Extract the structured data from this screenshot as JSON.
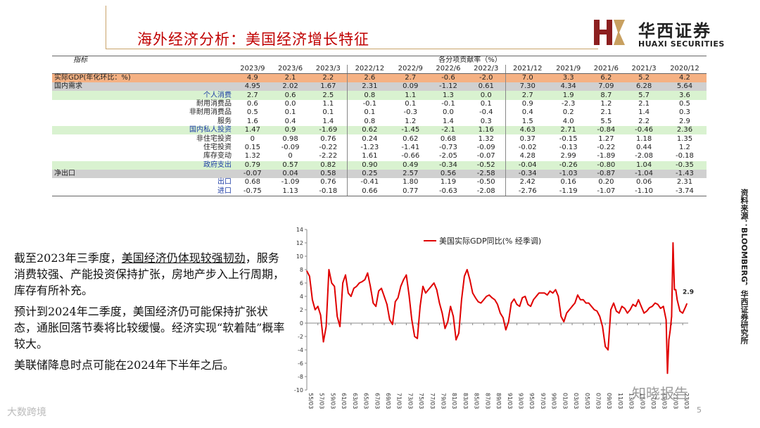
{
  "header": {
    "title": "海外经济分析：美国经济增长特征",
    "logo_cn": "华西证券",
    "logo_en": "HUAXI SECURITIES"
  },
  "table": {
    "label_header": "指标",
    "group_header": "各分项贡献率（%）",
    "columns": [
      "2023/9",
      "2023/6",
      "2023/3",
      "2022/12",
      "2022/9",
      "2022/6",
      "2022/3",
      "2021/12",
      "2021/9",
      "2021/6",
      "2021/3",
      "2020/12"
    ],
    "rows": [
      {
        "label": "实际GDP(年化环比：%)",
        "style": "orange",
        "values": [
          "4.9",
          "2.1",
          "2.2",
          "2.6",
          "2.7",
          "-0.6",
          "-2.0",
          "7.0",
          "3.3",
          "6.2",
          "5.2",
          "4.2"
        ]
      },
      {
        "label": "国内需求",
        "style": "gray",
        "values": [
          "4.95",
          "2.02",
          "1.67",
          "2.31",
          "0.09",
          "-1.12",
          "0.61",
          "7.30",
          "4.34",
          "7.09",
          "6.28",
          "5.64"
        ]
      },
      {
        "label": "个人消费",
        "style": "green",
        "values": [
          "2.7",
          "0.6",
          "2.5",
          "0.8",
          "1.1",
          "1.3",
          "0.0",
          "2.7",
          "1.9",
          "8.7",
          "5.7",
          "3.6"
        ]
      },
      {
        "label": "耐用消费品",
        "style": "plain",
        "values": [
          "0.6",
          "0.0",
          "1.1",
          "-0.1",
          "0.1",
          "-0.1",
          "0.1",
          "0.9",
          "-2.3",
          "1.2",
          "2.1",
          "0.5"
        ]
      },
      {
        "label": "非耐用消费品",
        "style": "plain",
        "values": [
          "0.5",
          "0.1",
          "0.1",
          "0.1",
          "-0.3",
          "0.0",
          "-0.4",
          "0.4",
          "0.2",
          "2.1",
          "1.4",
          "0.3"
        ]
      },
      {
        "label": "服务",
        "style": "plain",
        "values": [
          "1.6",
          "0.4",
          "1.4",
          "0.8",
          "1.2",
          "1.4",
          "0.3",
          "1.5",
          "4.0",
          "5.5",
          "2.2",
          "2.9"
        ]
      },
      {
        "label": "国内私人投资",
        "style": "green",
        "values": [
          "1.47",
          "0.9",
          "-1.69",
          "0.62",
          "-1.45",
          "-2.1",
          "1.16",
          "4.63",
          "2.71",
          "-0.84",
          "-0.46",
          "2.36"
        ]
      },
      {
        "label": "非住宅投资",
        "style": "plain",
        "values": [
          "0",
          "0.98",
          "0.76",
          "0.24",
          "0.62",
          "0.68",
          "1.32",
          "0.37",
          "-0.15",
          "1.27",
          "1.18",
          "1.35"
        ]
      },
      {
        "label": "住宅投资",
        "style": "plain",
        "values": [
          "0.15",
          "-0.09",
          "-0.22",
          "-1.23",
          "-1.41",
          "-0.73",
          "-0.09",
          "-0.02",
          "-0.13",
          "-0.22",
          "0.44",
          "1.2"
        ]
      },
      {
        "label": "库存变动",
        "style": "plain",
        "values": [
          "1.32",
          "0",
          "-2.22",
          "1.61",
          "-0.66",
          "-2.05",
          "-0.07",
          "4.28",
          "2.99",
          "-1.89",
          "-2.08",
          "-0.18"
        ]
      },
      {
        "label": "政府支出",
        "style": "green",
        "values": [
          "0.79",
          "0.57",
          "0.82",
          "0.90",
          "0.49",
          "-0.34",
          "-0.52",
          "-0.04",
          "-0.26",
          "-0.80",
          "1.04",
          "-0.35"
        ]
      },
      {
        "label": "净出口",
        "style": "gray-left",
        "values": [
          "-0.07",
          "0.04",
          "0.58",
          "0.25",
          "2.57",
          "0.56",
          "-2.58",
          "-0.34",
          "-1.03",
          "-0.87",
          "-1.04",
          "-1.43"
        ]
      },
      {
        "label": "出口",
        "style": "blue",
        "values": [
          "0.68",
          "-1.09",
          "0.76",
          "-0.41",
          "1.80",
          "1.19",
          "-0.50",
          "2.42",
          "0.16",
          "0.20",
          "0.06",
          "2.31"
        ]
      },
      {
        "label": "进口",
        "style": "blue",
        "values": [
          "-0.75",
          "1.13",
          "-0.18",
          "0.66",
          "0.77",
          "-0.63",
          "-2.08",
          "-2.76",
          "-1.19",
          "-1.07",
          "-1.10",
          "-3.74"
        ]
      }
    ]
  },
  "body": {
    "p1_a": "截至2023年三季度，",
    "p1_b": "美国经济仍体现较强韧劲",
    "p1_c": "，服务消费较强、产能投资保持扩张，房地产步入上行周期，库存有所补充。",
    "p2": "预计到2024年二季度，美国经济仍可能保持扩张状态，通胀回落节奏将比较缓慢。经济实现“软着陆”概率较大。",
    "p3": "美联储降息时点可能在2024年下半年之后。"
  },
  "side_note": "资料来源：BLOOMBERG，华西证券研究所",
  "page_number": "5",
  "watermarks": {
    "bottom_left": "大数跨境",
    "bottom_right": "知晓报告"
  },
  "chart_data": {
    "type": "line",
    "title": "",
    "xlabel": "",
    "ylabel": "",
    "ylim": [
      -10,
      14
    ],
    "yticks": [
      -10,
      -8,
      -6,
      -4,
      -2,
      0,
      2,
      4,
      6,
      8,
      10,
      12,
      14
    ],
    "x_tick_labels": [
      "55/03",
      "57/03",
      "59/03",
      "61/03",
      "63/03",
      "65/03",
      "67/03",
      "69/03",
      "71/03",
      "73/03",
      "75/03",
      "77/03",
      "79/03",
      "81/03",
      "83/03",
      "85/03",
      "87/03",
      "89/03",
      "91/03",
      "93/03",
      "95/03",
      "97/03",
      "99/03",
      "01/03",
      "03/03",
      "05/03",
      "07/03",
      "09/03",
      "11/03",
      "13/03",
      "15/03",
      "17/03",
      "19/03",
      "21/03",
      "23/03"
    ],
    "grid": false,
    "legend_position": "top-left",
    "last_value_label": "2.9",
    "color": "#e00000",
    "series": [
      {
        "name": "美国实际GDP同比(% 经季调)",
        "x": [
          1955.0,
          1955.5,
          1956.0,
          1956.5,
          1957.0,
          1957.5,
          1958.0,
          1958.5,
          1959.0,
          1959.5,
          1960.0,
          1960.5,
          1961.0,
          1961.5,
          1962.0,
          1962.5,
          1963.0,
          1963.5,
          1964.0,
          1964.5,
          1965.0,
          1965.5,
          1966.0,
          1966.5,
          1967.0,
          1967.5,
          1968.0,
          1968.5,
          1969.0,
          1969.5,
          1970.0,
          1970.5,
          1971.0,
          1971.5,
          1972.0,
          1972.5,
          1973.0,
          1973.5,
          1974.0,
          1974.5,
          1975.0,
          1975.5,
          1976.0,
          1976.5,
          1977.0,
          1977.5,
          1978.0,
          1978.5,
          1979.0,
          1979.5,
          1980.0,
          1980.5,
          1981.0,
          1981.5,
          1982.0,
          1982.5,
          1983.0,
          1983.5,
          1984.0,
          1984.5,
          1985.0,
          1985.5,
          1986.0,
          1986.5,
          1987.0,
          1987.5,
          1988.0,
          1988.5,
          1989.0,
          1989.5,
          1990.0,
          1990.5,
          1991.0,
          1991.5,
          1992.0,
          1992.5,
          1993.0,
          1993.5,
          1994.0,
          1994.5,
          1995.0,
          1995.5,
          1996.0,
          1996.5,
          1997.0,
          1997.5,
          1998.0,
          1998.5,
          1999.0,
          1999.5,
          2000.0,
          2000.5,
          2001.0,
          2001.5,
          2002.0,
          2002.5,
          2003.0,
          2003.5,
          2004.0,
          2004.5,
          2005.0,
          2005.5,
          2006.0,
          2006.5,
          2007.0,
          2007.5,
          2008.0,
          2008.5,
          2009.0,
          2009.5,
          2010.0,
          2010.5,
          2011.0,
          2011.5,
          2012.0,
          2012.5,
          2013.0,
          2013.5,
          2014.0,
          2014.5,
          2015.0,
          2015.5,
          2016.0,
          2016.5,
          2017.0,
          2017.5,
          2018.0,
          2018.5,
          2019.0,
          2019.5,
          2020.0,
          2020.25,
          2020.5,
          2020.75,
          2021.0,
          2021.25,
          2021.5,
          2021.75,
          2022.0,
          2022.5,
          2023.0,
          2023.5,
          2023.75
        ],
        "values": [
          7.8,
          7.0,
          3.5,
          2.0,
          2.5,
          1.2,
          -2.8,
          -0.5,
          8.0,
          6.0,
          5.5,
          1.0,
          -0.5,
          6.0,
          7.2,
          4.5,
          4.0,
          5.2,
          5.5,
          6.0,
          6.2,
          6.5,
          7.5,
          5.5,
          3.0,
          2.5,
          4.8,
          5.2,
          4.0,
          2.8,
          0.5,
          -0.2,
          3.2,
          3.8,
          5.5,
          6.5,
          7.2,
          4.2,
          0.5,
          -2.0,
          -2.3,
          2.5,
          5.5,
          4.5,
          5.0,
          5.5,
          6.0,
          5.0,
          3.0,
          1.5,
          -0.8,
          0.2,
          2.5,
          1.0,
          -2.5,
          -1.5,
          3.5,
          7.0,
          8.0,
          6.5,
          4.5,
          3.8,
          3.2,
          3.0,
          3.5,
          4.0,
          4.2,
          3.8,
          3.5,
          2.8,
          1.5,
          0.8,
          -1.0,
          0.2,
          3.0,
          3.6,
          2.8,
          2.5,
          3.8,
          4.0,
          2.8,
          2.5,
          3.5,
          4.0,
          4.5,
          4.5,
          4.5,
          4.2,
          4.8,
          4.5,
          5.0,
          4.0,
          1.0,
          0.2,
          1.5,
          2.0,
          2.5,
          3.0,
          4.2,
          3.5,
          3.5,
          3.0,
          3.0,
          2.5,
          2.0,
          1.8,
          1.0,
          -0.5,
          -3.5,
          -4.0,
          2.0,
          3.0,
          1.8,
          1.5,
          2.5,
          2.2,
          1.5,
          2.0,
          2.8,
          2.5,
          3.5,
          2.5,
          1.5,
          1.8,
          2.3,
          2.5,
          3.0,
          2.8,
          2.2,
          2.5,
          0.5,
          -7.5,
          -2.5,
          -1.0,
          1.0,
          12.0,
          5.0,
          5.0,
          3.5,
          1.8,
          1.5,
          2.4,
          2.9
        ]
      }
    ]
  }
}
